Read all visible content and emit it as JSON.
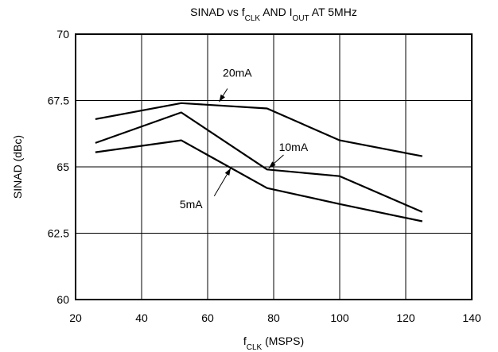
{
  "chart_data": {
    "type": "line",
    "title": {
      "parts": [
        {
          "text": "SINAD vs f",
          "sub": false
        },
        {
          "text": "CLK",
          "sub": true
        },
        {
          "text": " AND I",
          "sub": false
        },
        {
          "text": "OUT",
          "sub": true
        },
        {
          "text": " AT 5MHz",
          "sub": false
        }
      ]
    },
    "xlabel": {
      "parts": [
        {
          "text": "f",
          "sub": false
        },
        {
          "text": "CLK",
          "sub": true
        },
        {
          "text": " (MSPS)",
          "sub": false
        }
      ]
    },
    "ylabel": "SINAD (dBc)",
    "xlim": [
      20,
      140
    ],
    "ylim": [
      60,
      70
    ],
    "x_ticks": [
      20,
      40,
      60,
      80,
      100,
      120,
      140
    ],
    "y_ticks": [
      60,
      62.5,
      65,
      67.5,
      70
    ],
    "x_tick_labels": [
      "20",
      "40",
      "60",
      "80",
      "100",
      "120",
      "140"
    ],
    "y_tick_labels": [
      "60",
      "62.5",
      "65",
      "67.5",
      "70"
    ],
    "grid": true,
    "series": [
      {
        "name": "20mA",
        "x": [
          26,
          52,
          78,
          100,
          125
        ],
        "y": [
          66.8,
          67.4,
          67.2,
          66.0,
          65.4
        ]
      },
      {
        "name": "10mA",
        "x": [
          26,
          52,
          78,
          100,
          125
        ],
        "y": [
          65.9,
          67.05,
          64.9,
          64.65,
          63.3
        ]
      },
      {
        "name": "5mA",
        "x": [
          26,
          52,
          78,
          100,
          125
        ],
        "y": [
          65.55,
          66.0,
          64.2,
          63.6,
          62.95
        ]
      }
    ],
    "annotations": [
      {
        "text": "20mA",
        "label_at": [
          69,
          68.4
        ],
        "arrow_from": [
          66,
          67.95
        ],
        "arrow_to": [
          63.5,
          67.45
        ]
      },
      {
        "text": "10mA",
        "label_at": [
          86,
          65.6
        ],
        "arrow_from": [
          83,
          65.45
        ],
        "arrow_to": [
          78.5,
          64.95
        ]
      },
      {
        "text": "5mA",
        "label_at": [
          55,
          63.45
        ],
        "arrow_from": [
          62,
          63.9
        ],
        "arrow_to": [
          67,
          64.95
        ]
      }
    ]
  }
}
